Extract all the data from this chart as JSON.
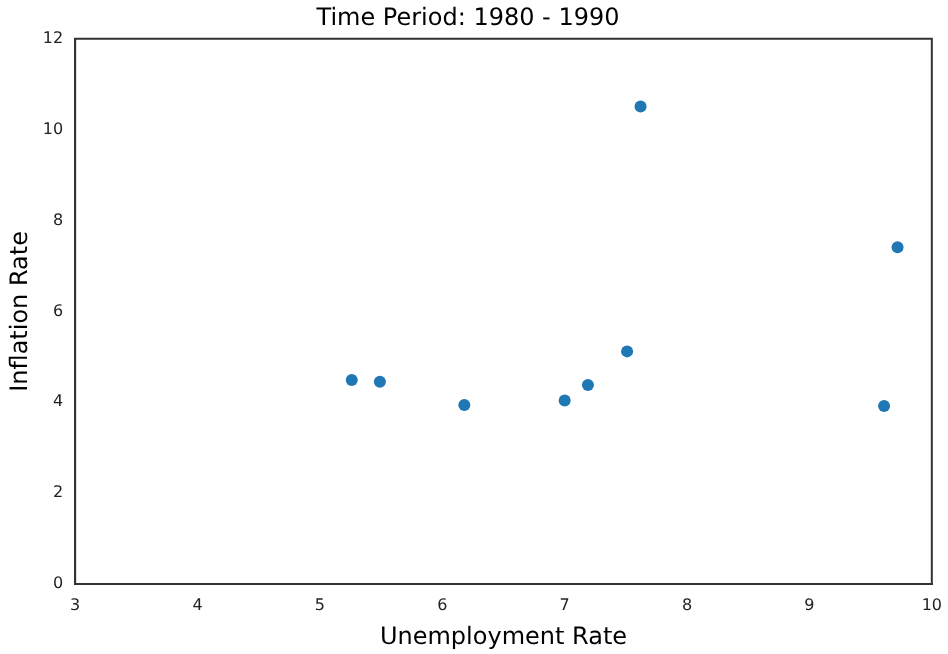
{
  "chart_data": {
    "type": "scatter",
    "title": "Time Period: 1980 - 1990",
    "xlabel": "Unemployment Rate",
    "ylabel": "Inflation Rate",
    "x": [
      5.26,
      5.49,
      6.18,
      7.0,
      7.19,
      7.51,
      7.62,
      9.61,
      9.72
    ],
    "series": [
      {
        "color": "#1f77b4",
        "values": [
          4.49,
          4.45,
          3.94,
          4.04,
          4.38,
          5.12,
          10.51,
          3.92,
          7.41
        ]
      }
    ],
    "xlim": [
      3,
      10
    ],
    "xticks": [
      3,
      4,
      5,
      6,
      7,
      8,
      9,
      10
    ],
    "ylim": [
      0,
      12
    ],
    "yticks": [
      0,
      2,
      4,
      6,
      8,
      10,
      12
    ],
    "grid": false,
    "legend": false,
    "marker": "circle"
  }
}
